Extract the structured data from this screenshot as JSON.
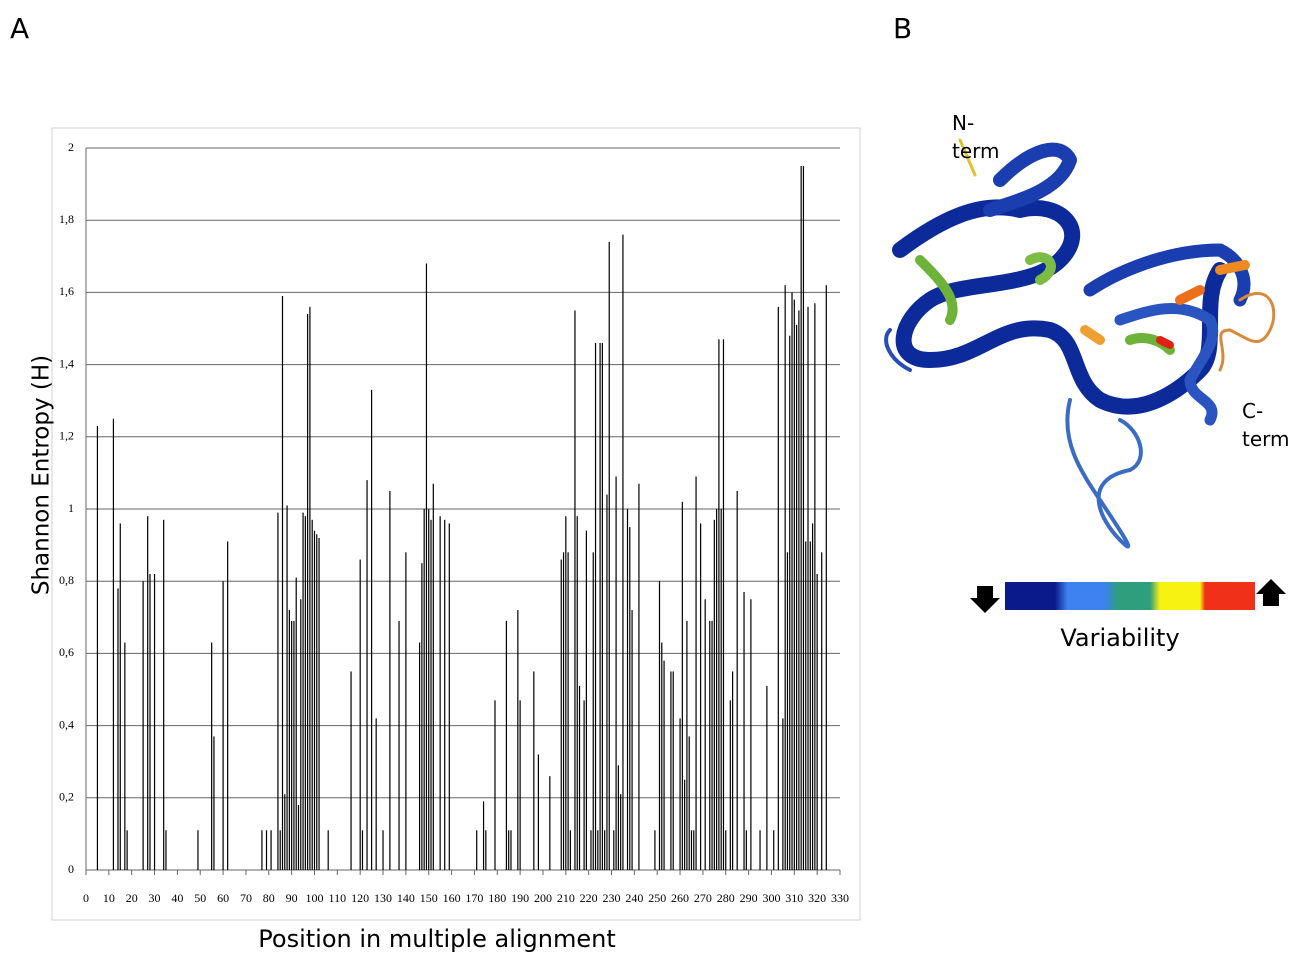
{
  "chart_data": {
    "type": "bar",
    "xlabel": "Position in multiple alignment",
    "ylabel": "Shannon Entropy (H)",
    "x": [
      5,
      12,
      14,
      15,
      17,
      18,
      25,
      27,
      28,
      30,
      34,
      35,
      49,
      55,
      56,
      60,
      62,
      77,
      79,
      81,
      84,
      85,
      86,
      87,
      88,
      89,
      90,
      91,
      92,
      93,
      94,
      95,
      96,
      97,
      98,
      99,
      100,
      101,
      102,
      106,
      116,
      120,
      121,
      123,
      125,
      127,
      130,
      133,
      137,
      140,
      146,
      147,
      148,
      149,
      150,
      151,
      152,
      155,
      157,
      159,
      171,
      174,
      175,
      179,
      184,
      185,
      186,
      189,
      190,
      196,
      198,
      203,
      208,
      209,
      210,
      211,
      212,
      214,
      215,
      216,
      218,
      219,
      221,
      222,
      223,
      224,
      225,
      226,
      227,
      228,
      229,
      231,
      232,
      233,
      234,
      235,
      237,
      238,
      239,
      242,
      249,
      251,
      252,
      253,
      256,
      257,
      260,
      261,
      262,
      263,
      264,
      265,
      266,
      267,
      269,
      271,
      273,
      274,
      275,
      276,
      277,
      278,
      279,
      280,
      282,
      283,
      285,
      288,
      289,
      291,
      295,
      298,
      301,
      303,
      305,
      306,
      307,
      308,
      309,
      310,
      311,
      312,
      313,
      314,
      315,
      316,
      317,
      318,
      319,
      320,
      322,
      324
    ],
    "values": [
      1.23,
      1.25,
      0.78,
      0.96,
      0.63,
      0.11,
      0.8,
      0.98,
      0.82,
      0.82,
      0.97,
      0.11,
      0.11,
      0.63,
      0.37,
      0.8,
      0.91,
      0.11,
      0.11,
      0.11,
      0.99,
      0.11,
      1.59,
      0.21,
      1.01,
      0.72,
      0.69,
      0.69,
      0.81,
      0.18,
      0.75,
      0.99,
      0.98,
      1.54,
      1.56,
      0.97,
      0.94,
      0.93,
      0.92,
      0.11,
      0.55,
      0.86,
      0.11,
      1.08,
      1.33,
      0.42,
      0.11,
      1.05,
      0.69,
      0.88,
      0.63,
      0.85,
      1.0,
      1.68,
      1.0,
      0.97,
      1.07,
      0.98,
      0.97,
      0.96,
      0.11,
      0.19,
      0.11,
      0.47,
      0.69,
      0.11,
      0.11,
      0.72,
      0.47,
      0.55,
      0.32,
      0.26,
      0.86,
      0.88,
      0.98,
      0.88,
      0.11,
      1.55,
      0.98,
      0.51,
      0.47,
      0.94,
      0.11,
      0.88,
      1.46,
      0.11,
      1.46,
      1.46,
      0.11,
      1.04,
      1.74,
      0.11,
      1.09,
      0.29,
      0.21,
      1.76,
      1.0,
      0.95,
      0.72,
      1.07,
      0.11,
      0.8,
      0.63,
      0.58,
      0.55,
      0.55,
      0.42,
      1.02,
      0.25,
      0.69,
      0.37,
      0.11,
      0.11,
      1.09,
      0.96,
      0.75,
      0.69,
      0.69,
      0.97,
      1.0,
      1.47,
      1.0,
      1.47,
      0.11,
      0.47,
      0.55,
      1.05,
      0.77,
      0.11,
      0.75,
      0.11,
      0.51,
      0.11,
      1.56,
      0.42,
      1.62,
      0.88,
      1.48,
      1.6,
      1.58,
      1.51,
      1.55,
      1.95,
      1.95,
      0.91,
      1.56,
      0.91,
      0.96,
      1.57,
      0.82,
      0.88,
      1.62
    ],
    "color": "#000000",
    "xlim": [
      0,
      330
    ],
    "xticks": [
      0,
      10,
      20,
      30,
      40,
      50,
      60,
      70,
      80,
      90,
      100,
      110,
      120,
      130,
      140,
      150,
      160,
      170,
      180,
      190,
      200,
      210,
      220,
      230,
      240,
      250,
      260,
      270,
      280,
      290,
      300,
      310,
      320,
      330
    ],
    "ylim": [
      0,
      2
    ],
    "yticks": [
      0,
      {
        "value": 0.2,
        "label": "0,2"
      },
      {
        "value": 0.4,
        "label": "0,4"
      },
      {
        "value": 0.6,
        "label": "0,6"
      },
      {
        "value": 0.8,
        "label": "0,8"
      },
      1,
      {
        "value": 1.2,
        "label": "1,2"
      },
      {
        "value": 1.4,
        "label": "1,4"
      },
      {
        "value": 1.6,
        "label": "1,6"
      },
      {
        "value": 1.8,
        "label": "1,8"
      },
      2
    ],
    "grid": true
  },
  "panel_a": "A",
  "panel_b": "B",
  "n_term": [
    "N-",
    "term"
  ],
  "c_term": [
    "C-",
    "term"
  ],
  "variability": "Variability"
}
